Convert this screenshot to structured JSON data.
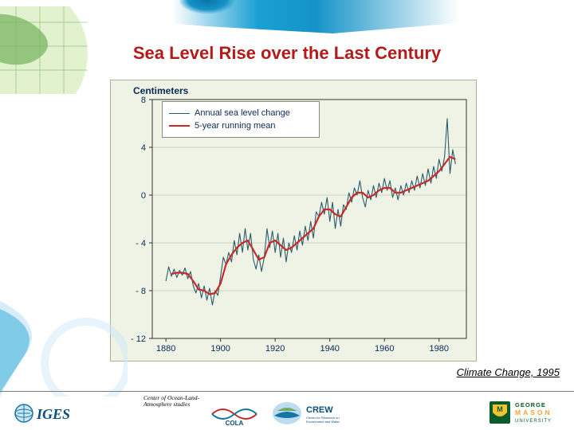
{
  "title": "Sea Level Rise over the Last Century",
  "source_caption": "Climate Change, 1995",
  "chart": {
    "type": "line",
    "y_axis_title": "Centimeters",
    "background_color": "#eef3e6",
    "plot_border_color": "#a9b29a",
    "grid_color": "#cfd7c2",
    "axis_color": "#333333",
    "tick_label_color": "#0b2a57",
    "tick_label_fontsize": 11,
    "xlim": [
      1875,
      1990
    ],
    "xticks": [
      1880,
      1900,
      1920,
      1940,
      1960,
      1980
    ],
    "ylim": [
      -12,
      8
    ],
    "yticks": [
      -12,
      -8,
      -4,
      0,
      4,
      8
    ],
    "legend": {
      "position": "top-left",
      "bg": "#ffffff",
      "border": "#8a8a7a",
      "items": [
        {
          "label": "Annual sea level change",
          "color": "#2a5d6b",
          "width": 1.1
        },
        {
          "label": "5-year running mean",
          "color": "#c82a2a",
          "width": 2.2
        }
      ]
    },
    "series": [
      {
        "name": "annual",
        "color": "#2a5d6b",
        "width": 1.1,
        "x": [
          1880,
          1881,
          1882,
          1883,
          1884,
          1885,
          1886,
          1887,
          1888,
          1889,
          1890,
          1891,
          1892,
          1893,
          1894,
          1895,
          1896,
          1897,
          1898,
          1899,
          1900,
          1901,
          1902,
          1903,
          1904,
          1905,
          1906,
          1907,
          1908,
          1909,
          1910,
          1911,
          1912,
          1913,
          1914,
          1915,
          1916,
          1917,
          1918,
          1919,
          1920,
          1921,
          1922,
          1923,
          1924,
          1925,
          1926,
          1927,
          1928,
          1929,
          1930,
          1931,
          1932,
          1933,
          1934,
          1935,
          1936,
          1937,
          1938,
          1939,
          1940,
          1941,
          1942,
          1943,
          1944,
          1945,
          1946,
          1947,
          1948,
          1949,
          1950,
          1951,
          1952,
          1953,
          1954,
          1955,
          1956,
          1957,
          1958,
          1959,
          1960,
          1961,
          1962,
          1963,
          1964,
          1965,
          1966,
          1967,
          1968,
          1969,
          1970,
          1971,
          1972,
          1973,
          1974,
          1975,
          1976,
          1977,
          1978,
          1979,
          1980,
          1981,
          1982,
          1983,
          1984,
          1985,
          1986
        ],
        "y": [
          -7.2,
          -6.0,
          -6.8,
          -6.2,
          -6.9,
          -6.3,
          -6.7,
          -6.1,
          -7.0,
          -6.4,
          -7.6,
          -8.2,
          -7.4,
          -8.6,
          -7.6,
          -8.8,
          -7.8,
          -9.2,
          -8.0,
          -8.4,
          -6.8,
          -5.2,
          -5.8,
          -4.8,
          -5.6,
          -3.8,
          -5.0,
          -3.2,
          -4.8,
          -2.8,
          -4.6,
          -3.2,
          -5.4,
          -6.2,
          -5.0,
          -6.4,
          -5.2,
          -2.8,
          -4.4,
          -3.0,
          -4.8,
          -3.2,
          -5.2,
          -3.6,
          -5.6,
          -4.0,
          -4.8,
          -3.4,
          -4.6,
          -3.0,
          -4.2,
          -2.6,
          -3.8,
          -2.2,
          -3.6,
          -1.4,
          -1.8,
          -0.6,
          -1.6,
          -0.2,
          -2.2,
          -0.6,
          -2.8,
          -1.2,
          -2.6,
          -0.8,
          -1.2,
          0.2,
          -0.6,
          0.6,
          0.0,
          1.2,
          -0.2,
          -1.0,
          0.4,
          -0.4,
          0.8,
          -0.2,
          1.0,
          0.2,
          1.4,
          0.4,
          1.2,
          -0.2,
          0.6,
          -0.4,
          0.8,
          0.0,
          1.0,
          0.2,
          1.2,
          0.4,
          1.6,
          0.6,
          1.8,
          0.8,
          2.2,
          1.0,
          2.4,
          1.4,
          3.0,
          2.0,
          3.2,
          6.4,
          1.8,
          3.8,
          2.6
        ]
      },
      {
        "name": "running_mean",
        "color": "#c82a2a",
        "width": 2.2,
        "x": [
          1882,
          1884,
          1886,
          1888,
          1890,
          1892,
          1894,
          1896,
          1898,
          1900,
          1902,
          1904,
          1906,
          1908,
          1910,
          1912,
          1914,
          1916,
          1918,
          1920,
          1922,
          1924,
          1926,
          1928,
          1930,
          1932,
          1934,
          1936,
          1938,
          1940,
          1942,
          1944,
          1946,
          1948,
          1950,
          1952,
          1954,
          1956,
          1958,
          1960,
          1962,
          1964,
          1966,
          1968,
          1970,
          1972,
          1974,
          1976,
          1978,
          1980,
          1982,
          1984,
          1986
        ],
        "y": [
          -6.6,
          -6.5,
          -6.5,
          -6.6,
          -7.2,
          -7.9,
          -8.0,
          -8.3,
          -8.2,
          -7.4,
          -5.8,
          -5.0,
          -4.4,
          -4.0,
          -3.8,
          -4.6,
          -5.4,
          -5.2,
          -4.0,
          -3.8,
          -4.2,
          -4.6,
          -4.4,
          -4.0,
          -3.6,
          -3.2,
          -2.8,
          -1.8,
          -1.2,
          -1.2,
          -1.6,
          -1.8,
          -1.0,
          -0.2,
          0.2,
          0.2,
          -0.2,
          0.0,
          0.4,
          0.6,
          0.6,
          0.2,
          0.2,
          0.4,
          0.6,
          0.8,
          1.0,
          1.2,
          1.6,
          2.0,
          2.6,
          3.2,
          3.0
        ]
      }
    ]
  },
  "footer": {
    "iges_label": "IGES",
    "cola_text_line1": "Center of Ocean-Land-",
    "cola_text_line2": "Atmosphere studies",
    "cola_label": "COLA",
    "crew_label": "CREW",
    "crew_sub": "Center for Research on Environment and Water",
    "gmu_line1": "GEORGE",
    "gmu_line2": "MASON",
    "gmu_line3": "UNIVERSITY"
  },
  "colors": {
    "title": "#b31b1b",
    "swoosh1": "#1493c8",
    "swoosh2": "#0b73a6",
    "globe_green": "#5aa13c"
  }
}
